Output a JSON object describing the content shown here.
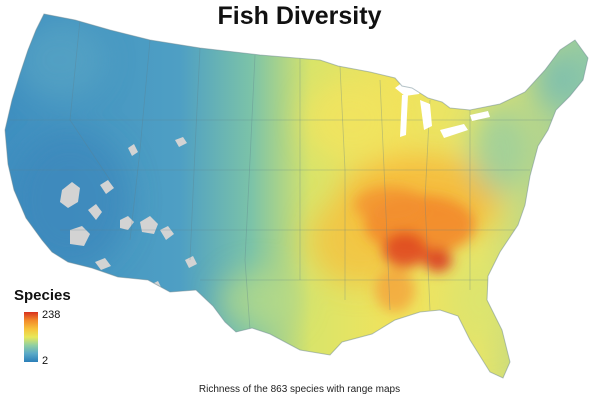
{
  "title": "Fish Diversity",
  "caption": "Richness of the 863 species with range maps",
  "legend": {
    "title": "Species",
    "max_label": "238",
    "min_label": "2",
    "colors": [
      "#2b7fb8",
      "#5aa9c8",
      "#8fcfa2",
      "#e8e85a",
      "#f7c23a",
      "#f28a2a",
      "#d8311f"
    ],
    "no_data_color": "#d3d3d3"
  },
  "map": {
    "region": "contiguous-united-states",
    "icon": "usa-map"
  }
}
